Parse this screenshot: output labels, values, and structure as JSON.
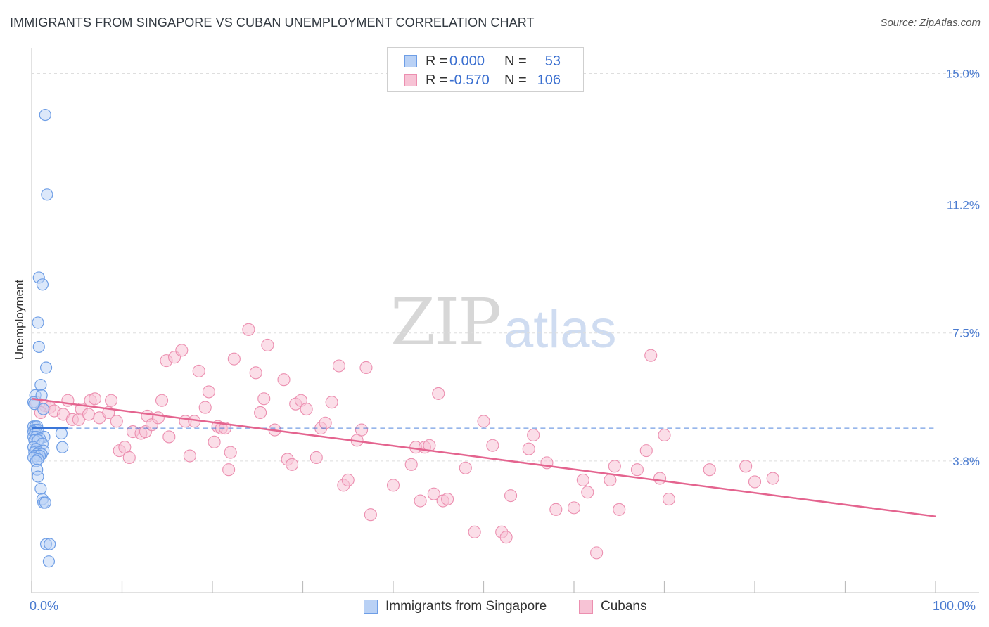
{
  "title": "IMMIGRANTS FROM SINGAPORE VS CUBAN UNEMPLOYMENT CORRELATION CHART",
  "source": "Source: ZipAtlas.com",
  "watermark": {
    "zip": "ZIP",
    "atlas": "atlas"
  },
  "colors": {
    "blue": "#6e9ee6",
    "blue_fill": "#b9d1f5",
    "blue_line": "#3a76d8",
    "pink": "#ec8fb0",
    "pink_fill": "#f7c3d5",
    "pink_line": "#e4648f",
    "tick_text": "#4a7bd0",
    "grid": "#dedede"
  },
  "legend": {
    "rows": [
      {
        "r_label": "R =",
        "r_value": "0.000",
        "n_label": "N =",
        "n_value": "53"
      },
      {
        "r_label": "R =",
        "r_value": "-0.570",
        "n_label": "N =",
        "n_value": "106"
      }
    ]
  },
  "bottom_legend": {
    "series1": "Immigrants from Singapore",
    "series2": "Cubans"
  },
  "x_axis": {
    "min_label": "0.0%",
    "max_label": "100.0%"
  },
  "chart_data": {
    "type": "scatter",
    "title": "IMMIGRANTS FROM SINGAPORE VS CUBAN UNEMPLOYMENT CORRELATION CHART",
    "xlabel": "",
    "ylabel": "Unemployment",
    "xlim": [
      0,
      100
    ],
    "ylim": [
      0,
      15.7
    ],
    "y_ticks": [
      3.8,
      7.5,
      11.2,
      15.0
    ],
    "y_tick_labels": [
      "3.8%",
      "7.5%",
      "11.2%",
      "15.0%"
    ],
    "x_ticks": [
      0,
      10,
      20,
      30,
      40,
      50,
      60,
      70,
      80,
      90,
      100
    ],
    "grid": true,
    "series": [
      {
        "name": "Immigrants from Singapore",
        "R": 0.0,
        "N": 53,
        "trend": {
          "x": [
            0,
            4
          ],
          "y": [
            4.75,
            4.75
          ],
          "dashed_extension_to": 100
        },
        "points": [
          [
            1.5,
            13.8
          ],
          [
            1.7,
            11.5
          ],
          [
            0.8,
            9.1
          ],
          [
            1.2,
            8.9
          ],
          [
            0.7,
            7.8
          ],
          [
            0.8,
            7.1
          ],
          [
            1.6,
            6.5
          ],
          [
            1.0,
            6.0
          ],
          [
            0.4,
            5.7
          ],
          [
            1.1,
            5.7
          ],
          [
            0.2,
            5.5
          ],
          [
            0.3,
            5.45
          ],
          [
            1.3,
            5.3
          ],
          [
            0.2,
            4.8
          ],
          [
            0.4,
            4.8
          ],
          [
            0.6,
            4.8
          ],
          [
            0.3,
            4.7
          ],
          [
            0.5,
            4.7
          ],
          [
            0.7,
            4.7
          ],
          [
            0.2,
            4.65
          ],
          [
            0.4,
            4.6
          ],
          [
            0.6,
            4.6
          ],
          [
            3.3,
            4.6
          ],
          [
            0.2,
            4.5
          ],
          [
            0.5,
            4.5
          ],
          [
            1.4,
            4.5
          ],
          [
            0.9,
            4.45
          ],
          [
            0.3,
            4.4
          ],
          [
            0.7,
            4.4
          ],
          [
            1.2,
            4.3
          ],
          [
            3.4,
            4.2
          ],
          [
            0.2,
            4.2
          ],
          [
            0.5,
            4.15
          ],
          [
            1.3,
            4.1
          ],
          [
            0.3,
            4.05
          ],
          [
            0.8,
            4.05
          ],
          [
            0.6,
            4.0
          ],
          [
            1.1,
            4.0
          ],
          [
            0.4,
            3.95
          ],
          [
            0.9,
            3.95
          ],
          [
            0.2,
            3.9
          ],
          [
            0.7,
            3.85
          ],
          [
            0.5,
            3.8
          ],
          [
            0.6,
            3.55
          ],
          [
            0.7,
            3.35
          ],
          [
            1.0,
            3.0
          ],
          [
            1.2,
            2.7
          ],
          [
            1.3,
            2.6
          ],
          [
            1.5,
            2.6
          ],
          [
            1.6,
            1.4
          ],
          [
            2.0,
            1.4
          ],
          [
            1.9,
            0.9
          ]
        ]
      },
      {
        "name": "Cubans",
        "R": -0.57,
        "N": 106,
        "trend": {
          "x": [
            0,
            100
          ],
          "y": [
            5.6,
            2.2
          ]
        },
        "points": [
          [
            0.5,
            5.5
          ],
          [
            1.5,
            5.4
          ],
          [
            2.0,
            5.35
          ],
          [
            1.0,
            5.2
          ],
          [
            2.5,
            5.25
          ],
          [
            3.5,
            5.15
          ],
          [
            4.0,
            5.55
          ],
          [
            4.5,
            5.0
          ],
          [
            5.2,
            5.0
          ],
          [
            5.5,
            5.3
          ],
          [
            6.3,
            5.15
          ],
          [
            6.5,
            5.55
          ],
          [
            7.0,
            5.6
          ],
          [
            7.5,
            5.05
          ],
          [
            8.5,
            5.2
          ],
          [
            8.8,
            5.55
          ],
          [
            9.4,
            4.95
          ],
          [
            9.7,
            4.1
          ],
          [
            10.3,
            4.2
          ],
          [
            10.8,
            3.9
          ],
          [
            11.2,
            4.65
          ],
          [
            12.1,
            4.6
          ],
          [
            12.6,
            4.65
          ],
          [
            12.8,
            5.1
          ],
          [
            13.3,
            4.85
          ],
          [
            14.0,
            5.05
          ],
          [
            14.4,
            5.55
          ],
          [
            15.2,
            4.5
          ],
          [
            14.9,
            6.7
          ],
          [
            15.8,
            6.8
          ],
          [
            16.6,
            7.0
          ],
          [
            17.0,
            4.95
          ],
          [
            17.5,
            3.95
          ],
          [
            18.0,
            4.95
          ],
          [
            18.5,
            6.4
          ],
          [
            19.2,
            5.35
          ],
          [
            19.6,
            5.8
          ],
          [
            20.2,
            4.35
          ],
          [
            20.6,
            4.8
          ],
          [
            21.0,
            4.75
          ],
          [
            21.4,
            4.75
          ],
          [
            21.8,
            3.55
          ],
          [
            22.0,
            4.05
          ],
          [
            22.4,
            6.75
          ],
          [
            24.0,
            7.6
          ],
          [
            24.8,
            6.35
          ],
          [
            25.3,
            5.2
          ],
          [
            25.7,
            5.6
          ],
          [
            26.1,
            7.15
          ],
          [
            26.9,
            4.7
          ],
          [
            27.9,
            6.15
          ],
          [
            28.3,
            3.85
          ],
          [
            28.8,
            3.7
          ],
          [
            29.2,
            5.45
          ],
          [
            29.8,
            5.55
          ],
          [
            30.4,
            5.3
          ],
          [
            31.5,
            3.9
          ],
          [
            32.0,
            4.75
          ],
          [
            32.5,
            4.9
          ],
          [
            33.2,
            5.5
          ],
          [
            34.0,
            6.55
          ],
          [
            34.5,
            3.1
          ],
          [
            35.0,
            3.25
          ],
          [
            36.0,
            4.4
          ],
          [
            36.5,
            4.7
          ],
          [
            37.0,
            6.5
          ],
          [
            37.5,
            2.25
          ],
          [
            40.0,
            3.1
          ],
          [
            42.0,
            3.7
          ],
          [
            42.5,
            4.2
          ],
          [
            43.0,
            2.65
          ],
          [
            43.5,
            4.2
          ],
          [
            44.0,
            4.25
          ],
          [
            44.5,
            2.85
          ],
          [
            45.0,
            5.75
          ],
          [
            45.5,
            2.65
          ],
          [
            46.0,
            2.7
          ],
          [
            48.0,
            3.6
          ],
          [
            49.0,
            1.75
          ],
          [
            50.0,
            4.95
          ],
          [
            51.0,
            4.25
          ],
          [
            52.0,
            1.75
          ],
          [
            52.5,
            1.6
          ],
          [
            53.0,
            2.8
          ],
          [
            55.0,
            4.15
          ],
          [
            55.5,
            4.55
          ],
          [
            57.0,
            3.75
          ],
          [
            58.0,
            2.4
          ],
          [
            60.0,
            2.45
          ],
          [
            61.0,
            3.25
          ],
          [
            61.5,
            2.9
          ],
          [
            62.5,
            1.15
          ],
          [
            64.0,
            3.25
          ],
          [
            64.5,
            3.65
          ],
          [
            65.0,
            2.4
          ],
          [
            67.0,
            3.55
          ],
          [
            68.0,
            4.1
          ],
          [
            68.5,
            6.85
          ],
          [
            69.5,
            3.3
          ],
          [
            70.5,
            2.7
          ],
          [
            70.0,
            4.55
          ],
          [
            75.0,
            3.55
          ],
          [
            79.0,
            3.65
          ],
          [
            80.0,
            3.2
          ],
          [
            82.0,
            3.3
          ]
        ]
      }
    ]
  }
}
